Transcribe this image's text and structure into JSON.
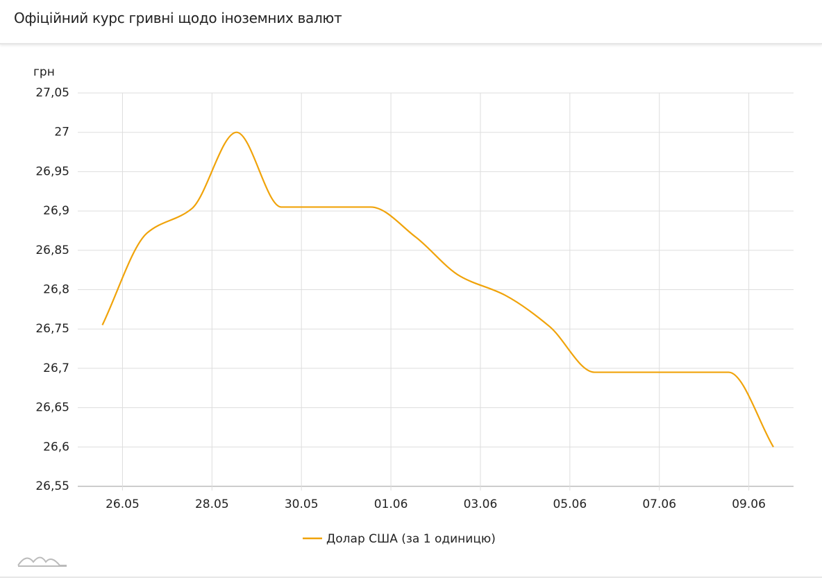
{
  "chart_data": {
    "type": "line",
    "title": "Офіційний курс гривні щодо іноземних валют",
    "y_label": "грн",
    "x": [
      0,
      1,
      2,
      3,
      4,
      5,
      6,
      7,
      8,
      9,
      10,
      11,
      12,
      13,
      14,
      15
    ],
    "xlim": [
      -0.55,
      15.45
    ],
    "xticks": [
      {
        "value": 0.45,
        "label": "26.05"
      },
      {
        "value": 2.45,
        "label": "28.05"
      },
      {
        "value": 4.45,
        "label": "30.05"
      },
      {
        "value": 6.45,
        "label": "01.06"
      },
      {
        "value": 8.45,
        "label": "03.06"
      },
      {
        "value": 10.45,
        "label": "05.06"
      },
      {
        "value": 12.45,
        "label": "07.06"
      },
      {
        "value": 14.45,
        "label": "09.06"
      }
    ],
    "ylim": [
      26.55,
      27.05
    ],
    "yticks": [
      {
        "value": 26.55,
        "label": "26,55"
      },
      {
        "value": 26.6,
        "label": "26,6"
      },
      {
        "value": 26.65,
        "label": "26,65"
      },
      {
        "value": 26.7,
        "label": "26,7"
      },
      {
        "value": 26.75,
        "label": "26,75"
      },
      {
        "value": 26.8,
        "label": "26,8"
      },
      {
        "value": 26.85,
        "label": "26,85"
      },
      {
        "value": 26.9,
        "label": "26,9"
      },
      {
        "value": 26.95,
        "label": "26,95"
      },
      27,
      {
        "value": 27.05,
        "label": "27,05"
      }
    ],
    "grid": true,
    "series": [
      {
        "name": "Долар США (за 1 одиницю)",
        "color": "#f0a30a",
        "values": [
          26.755,
          26.872,
          26.903,
          27.0,
          26.905,
          26.905,
          26.905,
          26.867,
          26.817,
          26.793,
          26.753,
          26.695,
          26.695,
          26.695,
          26.695,
          26.6
        ]
      }
    ]
  }
}
